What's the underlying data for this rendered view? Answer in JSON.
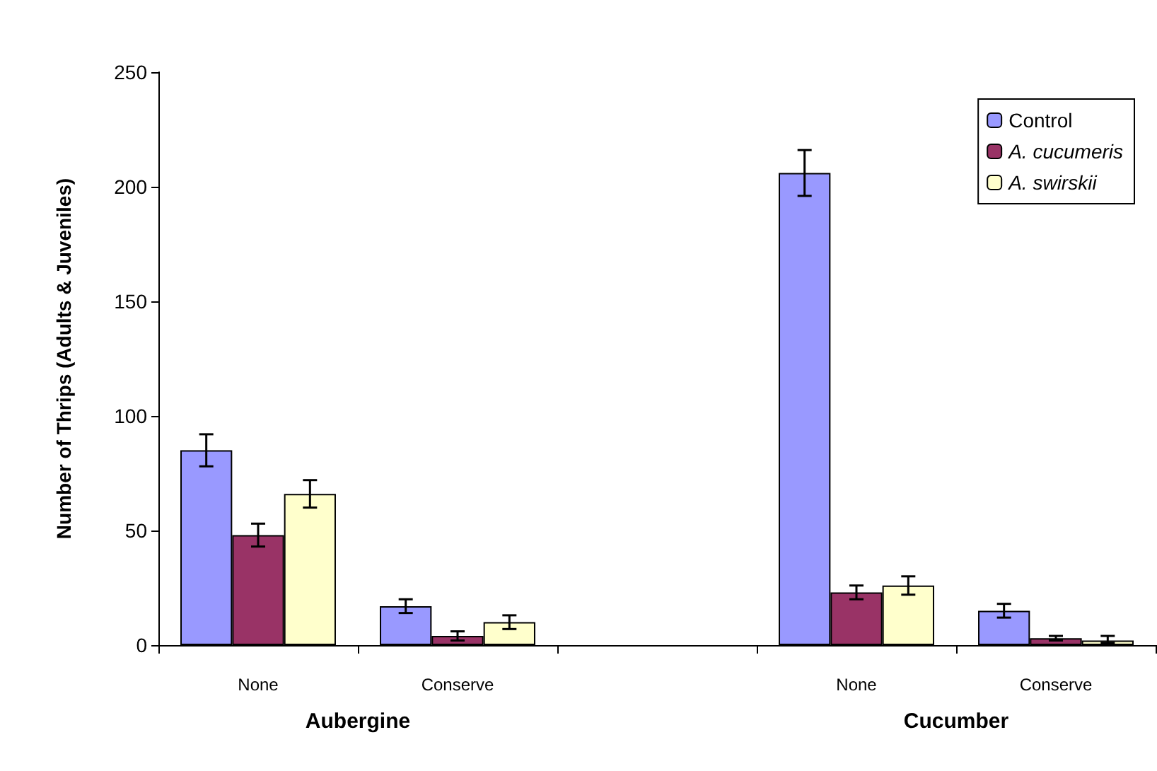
{
  "chart_data": {
    "type": "bar",
    "ylabel": "Number of Thrips (Adults & Juveniles)",
    "categories": [
      "None",
      "Conserve",
      null,
      "None",
      "Conserve"
    ],
    "series": [
      {
        "name": "Control",
        "color": "#9999ff",
        "values": [
          85,
          17,
          null,
          206,
          15
        ],
        "errors": [
          7,
          3,
          null,
          10,
          3
        ]
      },
      {
        "name": "A. cucumeris",
        "color": "#993366",
        "values": [
          48,
          4,
          null,
          23,
          3
        ],
        "errors": [
          5,
          2,
          null,
          3,
          1
        ]
      },
      {
        "name": "A. swirskii",
        "color": "#ffffcc",
        "values": [
          66,
          10,
          null,
          26,
          2
        ],
        "errors": [
          6,
          3,
          null,
          4,
          [
            1,
            4
          ]
        ]
      }
    ],
    "annotations": [
      "Aubergine",
      "Cucumber"
    ],
    "ylim": [
      0,
      250
    ],
    "yticks": [
      0,
      50,
      100,
      150,
      200,
      250
    ],
    "grid": false,
    "legend": "top right"
  }
}
